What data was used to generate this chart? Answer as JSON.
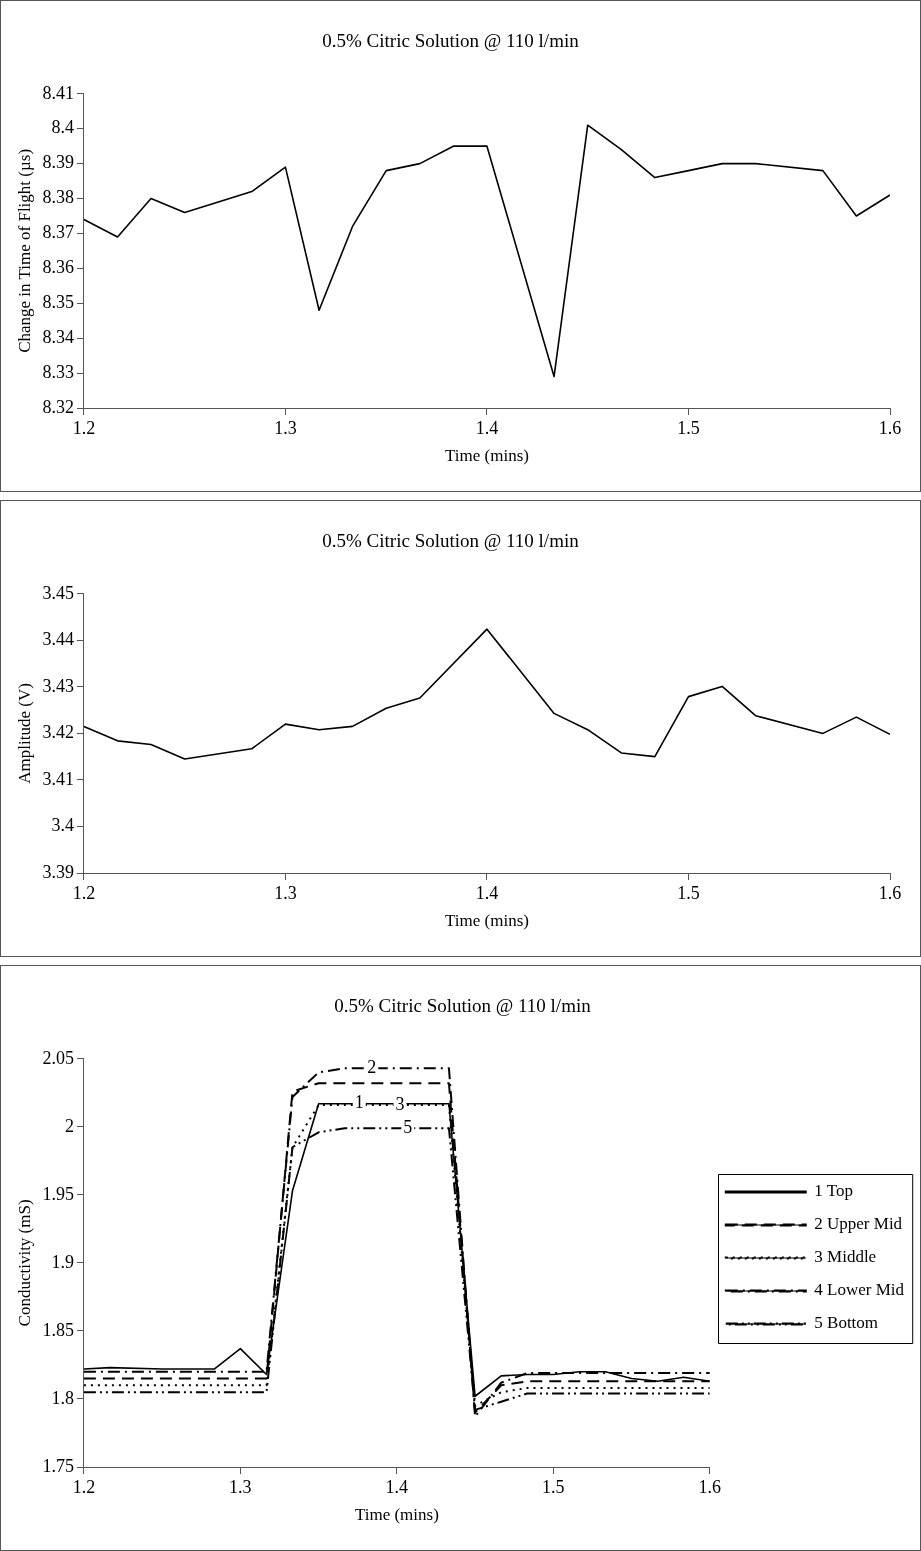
{
  "chart_data": [
    {
      "type": "line",
      "title": "0.5% Citric Solution @ 110 l/min",
      "xlabel": "Time (mins)",
      "ylabel": "Change in Time of Flight (µs)",
      "xlim": [
        1.2,
        1.6
      ],
      "xticks": [
        1.2,
        1.3,
        1.4,
        1.5,
        1.6
      ],
      "ylim": [
        8.32,
        8.41
      ],
      "yticks": [
        8.32,
        8.33,
        8.34,
        8.35,
        8.36,
        8.37,
        8.38,
        8.39,
        8.4,
        8.41
      ],
      "grid": false,
      "legend": false,
      "marker": "none",
      "line_style": "solid",
      "x": [
        1.2,
        1.2167,
        1.2333,
        1.25,
        1.2667,
        1.2833,
        1.3,
        1.3167,
        1.3333,
        1.35,
        1.3667,
        1.3833,
        1.4,
        1.4333,
        1.45,
        1.4667,
        1.4833,
        1.5,
        1.5167,
        1.5333,
        1.5667,
        1.5833,
        1.6
      ],
      "series": [
        {
          "color": "#000000",
          "values": [
            8.374,
            8.369,
            8.38,
            8.376,
            8.379,
            8.382,
            8.389,
            8.348,
            8.372,
            8.388,
            8.39,
            8.395,
            8.395,
            8.329,
            8.401,
            8.394,
            8.386,
            8.388,
            8.39,
            8.39,
            8.388,
            8.375,
            8.381
          ]
        }
      ]
    },
    {
      "type": "line",
      "title": "0.5% Citric Solution @ 110 l/min",
      "xlabel": "Time (mins)",
      "ylabel": "Amplitude (V)",
      "xlim": [
        1.2,
        1.6
      ],
      "xticks": [
        1.2,
        1.3,
        1.4,
        1.5,
        1.6
      ],
      "ylim": [
        3.39,
        3.45
      ],
      "yticks": [
        3.39,
        3.4,
        3.41,
        3.42,
        3.43,
        3.44,
        3.45
      ],
      "grid": false,
      "legend": false,
      "marker": "none",
      "line_style": "solid",
      "x": [
        1.2,
        1.2167,
        1.2333,
        1.25,
        1.2833,
        1.3,
        1.3167,
        1.3333,
        1.35,
        1.3667,
        1.4,
        1.4333,
        1.45,
        1.4667,
        1.4833,
        1.5,
        1.5167,
        1.5333,
        1.5667,
        1.5833,
        1.6
      ],
      "series": [
        {
          "color": "#000000",
          "values": [
            3.4215,
            3.4184,
            3.4176,
            3.4145,
            3.4167,
            3.422,
            3.4208,
            3.4215,
            3.4254,
            3.4276,
            3.4424,
            3.4243,
            3.4208,
            3.4158,
            3.415,
            3.4279,
            3.4301,
            3.4238,
            3.42,
            3.4235,
            3.4198
          ]
        }
      ]
    },
    {
      "type": "line",
      "title": "0.5% Citric Solution @ 110 l/min",
      "xlabel": "Time (mins)",
      "ylabel": "Conductivity (mS)",
      "xlim": [
        1.2,
        1.6
      ],
      "xticks": [
        1.2,
        1.3,
        1.4,
        1.5,
        1.6
      ],
      "ylim": [
        1.75,
        2.05
      ],
      "yticks": [
        1.75,
        1.8,
        1.85,
        1.9,
        1.95,
        2,
        2.05
      ],
      "grid": false,
      "legend": "right",
      "marker": "none",
      "x": [
        1.2,
        1.2167,
        1.25,
        1.2833,
        1.3,
        1.3167,
        1.3333,
        1.35,
        1.3667,
        1.4333,
        1.45,
        1.4667,
        1.4833,
        1.5,
        1.5167,
        1.5333,
        1.55,
        1.5667,
        1.5833,
        1.6
      ],
      "series": [
        {
          "name": "1 Top",
          "color": "#000000",
          "line_style": "solid",
          "values": [
            1.822,
            1.823,
            1.822,
            1.822,
            1.837,
            1.818,
            1.953,
            2.017,
            2.017,
            2.017,
            1.802,
            1.817,
            1.818,
            1.818,
            1.82,
            1.82,
            1.815,
            1.813,
            1.816,
            1.813
          ]
        },
        {
          "name": "2 Upper Mid",
          "color": "#000000",
          "line_style": "dashed",
          "values": [
            1.815,
            1.815,
            1.815,
            1.815,
            1.815,
            1.815,
            2.026,
            2.032,
            2.032,
            2.032,
            1.79,
            1.81,
            1.813,
            1.813,
            1.813,
            1.813,
            1.813,
            1.813,
            1.813,
            1.813
          ]
        },
        {
          "name": "3 Middle",
          "color": "#000000",
          "line_style": "dotted",
          "values": [
            1.81,
            1.81,
            1.81,
            1.81,
            1.81,
            1.81,
            1.985,
            2.016,
            2.016,
            2.016,
            1.795,
            1.805,
            1.808,
            1.808,
            1.808,
            1.808,
            1.808,
            1.808,
            1.808,
            1.808
          ]
        },
        {
          "name": "4 Lower Mid",
          "color": "#000000",
          "line_style": "dashdot",
          "values": [
            1.82,
            1.82,
            1.82,
            1.82,
            1.82,
            1.82,
            2.022,
            2.04,
            2.043,
            2.043,
            1.787,
            1.812,
            1.819,
            1.819,
            1.819,
            1.819,
            1.819,
            1.819,
            1.819,
            1.819
          ]
        },
        {
          "name": "5 Bottom",
          "color": "#000000",
          "line_style": "dashdotdot",
          "values": [
            1.805,
            1.805,
            1.805,
            1.805,
            1.805,
            1.805,
            1.985,
            1.996,
            1.999,
            1.999,
            1.792,
            1.798,
            1.804,
            1.804,
            1.804,
            1.804,
            1.804,
            1.804,
            1.804,
            1.804
          ]
        }
      ],
      "annotations": [
        {
          "text": "1",
          "x": 1.376,
          "y": 2.017
        },
        {
          "text": "2",
          "x": 1.384,
          "y": 2.043
        },
        {
          "text": "3",
          "x": 1.402,
          "y": 2.016
        },
        {
          "text": "5",
          "x": 1.407,
          "y": 1.999
        }
      ]
    }
  ]
}
